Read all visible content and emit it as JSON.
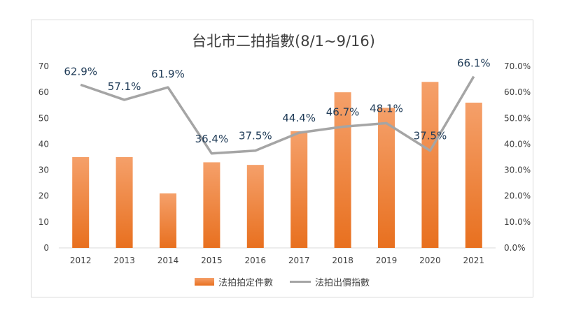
{
  "chart_data": {
    "type": "bar",
    "title": "台北市二拍指數(8/1~9/16)",
    "categories": [
      "2012",
      "2013",
      "2014",
      "2015",
      "2016",
      "2017",
      "2018",
      "2019",
      "2020",
      "2021"
    ],
    "series": [
      {
        "name": "法拍拍定件數",
        "type": "bar",
        "axis": "left",
        "color": "#ed7d31",
        "values": [
          35,
          35,
          21,
          33,
          32,
          45,
          60,
          54,
          64,
          56
        ]
      },
      {
        "name": "法拍出價指數",
        "type": "line",
        "axis": "right",
        "color": "#a5a5a5",
        "values": [
          62.9,
          57.1,
          61.9,
          36.4,
          37.5,
          44.4,
          46.7,
          48.1,
          37.5,
          66.1
        ],
        "labels": [
          "62.9%",
          "57.1%",
          "61.9%",
          "36.4%",
          "37.5%",
          "44.4%",
          "46.7%",
          "48.1%",
          "37.5%",
          "66.1%"
        ]
      }
    ],
    "y_left": {
      "min": 0,
      "max": 70,
      "ticks": [
        "0",
        "10",
        "20",
        "30",
        "40",
        "50",
        "60",
        "70"
      ]
    },
    "y_right": {
      "min": 0,
      "max": 70,
      "ticks": [
        "0.0%",
        "10.0%",
        "20.0%",
        "30.0%",
        "40.0%",
        "50.0%",
        "60.0%",
        "70.0%"
      ]
    },
    "grid": false,
    "legend": "bottom"
  }
}
